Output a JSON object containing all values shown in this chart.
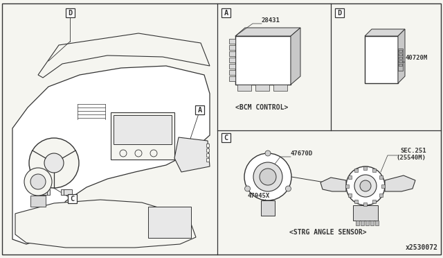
{
  "bg_color": "#f5f5f0",
  "line_color": "#333333",
  "title_diagram_id": "x2530072",
  "panel_A_label": "A",
  "panel_D_label": "D",
  "panel_C_label": "C",
  "part_A_number": "28431",
  "part_A_caption": "<BCM CONTROL>",
  "part_D_number": "40720M",
  "part_C1_number": "47670D",
  "part_C2_number": "47945X",
  "part_C3_ref_line1": "SEC.251",
  "part_C3_ref_line2": "(25540M)",
  "part_C_caption": "<STRG ANGLE SENSOR>",
  "fig_width": 6.4,
  "fig_height": 3.72,
  "dpi": 100
}
